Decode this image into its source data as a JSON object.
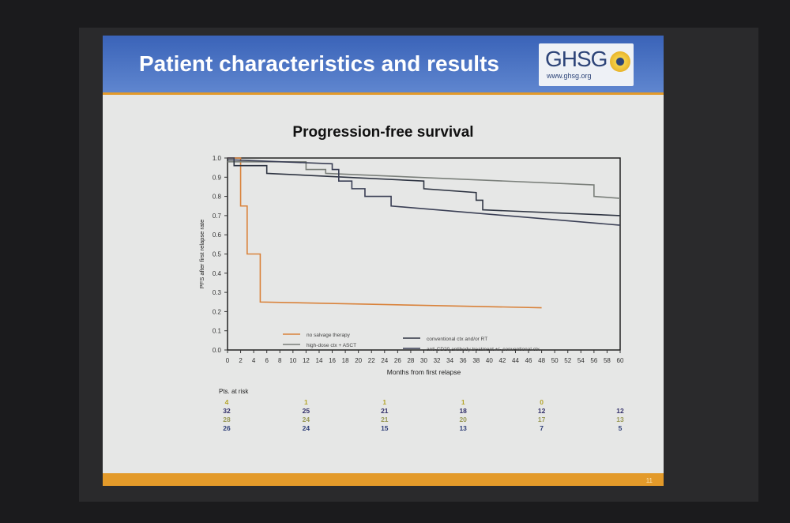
{
  "slide": {
    "title": "Patient characteristics and results",
    "logo_text": "GHSG",
    "logo_url": "www.ghsg.org",
    "page_number": "11"
  },
  "chart_data": {
    "type": "line",
    "title": "Progression-free survival",
    "xlabel": "Months from first relapse",
    "ylabel": "PFS after first relapse rate",
    "xlim": [
      0,
      60
    ],
    "ylim": [
      0,
      1
    ],
    "xticks": [
      0,
      2,
      4,
      6,
      8,
      10,
      12,
      14,
      16,
      18,
      20,
      22,
      24,
      26,
      28,
      30,
      32,
      34,
      36,
      38,
      40,
      42,
      44,
      46,
      48,
      50,
      52,
      54,
      56,
      58,
      60
    ],
    "yticks": [
      "0.0",
      "0.1",
      "0.2",
      "0.3",
      "0.4",
      "0.5",
      "0.6",
      "0.7",
      "0.8",
      "0.9",
      "1.0"
    ],
    "series": [
      {
        "name": "no salvage therapy",
        "color": "#d9823a",
        "points": [
          [
            0,
            1
          ],
          [
            2,
            1
          ],
          [
            2,
            0.75
          ],
          [
            3,
            0.75
          ],
          [
            3,
            0.5
          ],
          [
            5,
            0.5
          ],
          [
            5,
            0.25
          ],
          [
            48,
            0.22
          ]
        ]
      },
      {
        "name": "high-dose ctx + ASCT",
        "color": "#7a7f7a",
        "points": [
          [
            0,
            0.98
          ],
          [
            12,
            0.98
          ],
          [
            12,
            0.94
          ],
          [
            15,
            0.94
          ],
          [
            15,
            0.92
          ],
          [
            56,
            0.86
          ],
          [
            56,
            0.8
          ],
          [
            60,
            0.79
          ]
        ]
      },
      {
        "name": "conventional ctx and/or RT",
        "color": "#2e3442",
        "points": [
          [
            0,
            0.99
          ],
          [
            1,
            0.99
          ],
          [
            1,
            0.96
          ],
          [
            6,
            0.96
          ],
          [
            6,
            0.92
          ],
          [
            30,
            0.88
          ],
          [
            30,
            0.84
          ],
          [
            38,
            0.82
          ],
          [
            38,
            0.78
          ],
          [
            39,
            0.78
          ],
          [
            39,
            0.73
          ],
          [
            60,
            0.7
          ]
        ]
      },
      {
        "name": "anti-CD20 antibody treatment +/- conventional ctx",
        "color": "#3a3f55",
        "points": [
          [
            0,
            1
          ],
          [
            1,
            1
          ],
          [
            1,
            0.99
          ],
          [
            16,
            0.97
          ],
          [
            16,
            0.94
          ],
          [
            17,
            0.94
          ],
          [
            17,
            0.88
          ],
          [
            19,
            0.88
          ],
          [
            19,
            0.84
          ],
          [
            21,
            0.84
          ],
          [
            21,
            0.8
          ],
          [
            25,
            0.8
          ],
          [
            25,
            0.75
          ],
          [
            60,
            0.65
          ]
        ]
      }
    ],
    "legend": [
      "no salvage therapy",
      "high-dose ctx + ASCT",
      "conventional ctx and/or RT",
      "anti-CD20 antibody treatment +/- conventional ctx"
    ],
    "legend_position": "bottom-center",
    "at_risk": {
      "label": "Pts. at risk",
      "months": [
        0,
        12,
        24,
        36,
        48,
        60
      ],
      "rows": [
        {
          "color": "#b5a42a",
          "values": [
            "4",
            "1",
            "1",
            "1",
            "0",
            ""
          ]
        },
        {
          "color": "#33306a",
          "values": [
            "32",
            "25",
            "21",
            "18",
            "12",
            "12"
          ]
        },
        {
          "color": "#9a9a58",
          "values": [
            "28",
            "24",
            "21",
            "20",
            "17",
            "13"
          ]
        },
        {
          "color": "#2f3f78",
          "values": [
            "26",
            "24",
            "15",
            "13",
            "7",
            "5"
          ]
        }
      ]
    }
  }
}
